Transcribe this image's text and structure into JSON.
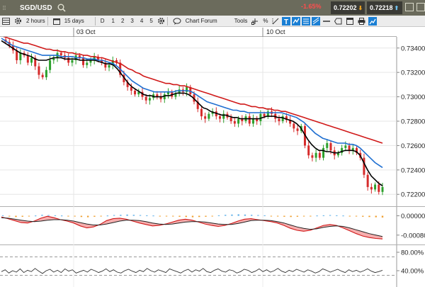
{
  "header": {
    "symbol": "SGD/USD",
    "change": "-1.65%",
    "bid": "0.72202",
    "ask": "0.72218"
  },
  "toolbar": {
    "interval": "2 hours",
    "range": "15 days",
    "candle_label": "D",
    "periods": [
      "1",
      "2",
      "3",
      "4",
      "5"
    ],
    "forum": "Chart Forum",
    "tools": "Tools",
    "percent": "%"
  },
  "dates": [
    "03 Oct",
    "10 Oct"
  ],
  "colors": {
    "up": "#2ca02c",
    "down": "#d62b2b",
    "ma_fast": "#000000",
    "ma_mid": "#1f6fd1",
    "ma_slow": "#d01818",
    "hist_pos": "#5aaee8",
    "hist_neg": "#f0a030",
    "macd_fill": "#f4a0a0"
  },
  "chart_data": [
    {
      "type": "candlestick",
      "title": "SGD/USD",
      "ylim": [
        0.7212,
        0.7348
      ],
      "y_ticks": [
        "0.73400",
        "0.73200",
        "0.73000",
        "0.72800",
        "0.72600",
        "0.72400",
        "0.72200"
      ],
      "x_labels": [
        "03 Oct",
        "10 Oct"
      ],
      "grid": true,
      "closes": [
        0.7345,
        0.7342,
        0.7338,
        0.733,
        0.7336,
        0.7334,
        0.7328,
        0.7332,
        0.7325,
        0.7318,
        0.7316,
        0.7322,
        0.733,
        0.7332,
        0.7336,
        0.7334,
        0.7332,
        0.7328,
        0.733,
        0.7334,
        0.7332,
        0.7326,
        0.7328,
        0.733,
        0.7333,
        0.733,
        0.7328,
        0.7324,
        0.7326,
        0.733,
        0.7328,
        0.7318,
        0.7312,
        0.7308,
        0.7305,
        0.7302,
        0.7304,
        0.73,
        0.7297,
        0.7299,
        0.7302,
        0.73,
        0.7298,
        0.7302,
        0.7304,
        0.73,
        0.7303,
        0.7306,
        0.7304,
        0.7308,
        0.7302,
        0.7296,
        0.729,
        0.7284,
        0.7282,
        0.7286,
        0.7288,
        0.7284,
        0.7282,
        0.7286,
        0.7283,
        0.728,
        0.7278,
        0.7282,
        0.728,
        0.7284,
        0.7278,
        0.7282,
        0.728,
        0.7286,
        0.7284,
        0.7288,
        0.7286,
        0.7282,
        0.728,
        0.7284,
        0.7281,
        0.7278,
        0.7274,
        0.7272,
        0.7276,
        0.726,
        0.7252,
        0.725,
        0.7254,
        0.725,
        0.7258,
        0.7262,
        0.7256,
        0.7252,
        0.7254,
        0.7258,
        0.726,
        0.7256,
        0.7258,
        0.7254,
        0.725,
        0.7236,
        0.7226,
        0.7224,
        0.7228,
        0.7222,
        0.7226
      ],
      "series": [
        {
          "name": "",
          "values": [
            0.7346,
            0.7344,
            0.7342,
            0.734,
            0.7338,
            0.7336,
            0.7335,
            0.7334,
            0.7333,
            0.7331,
            0.733,
            0.733,
            0.733,
            0.7331,
            0.7332,
            0.7332,
            0.7332,
            0.7331,
            0.7331,
            0.7331,
            0.7331,
            0.733,
            0.733,
            0.733,
            0.733,
            0.733,
            0.7329,
            0.7328,
            0.7327,
            0.7327,
            0.7326,
            0.7323,
            0.7319,
            0.7315,
            0.7311,
            0.7308,
            0.7306,
            0.7304,
            0.7302,
            0.7301,
            0.7301,
            0.73,
            0.73,
            0.73,
            0.7301,
            0.7301,
            0.7302,
            0.7303,
            0.7303,
            0.7303,
            0.7302,
            0.73,
            0.7297,
            0.7294,
            0.7291,
            0.729,
            0.7288,
            0.7287,
            0.7286,
            0.7285,
            0.7285,
            0.7284,
            0.7283,
            0.7283,
            0.7282,
            0.7282,
            0.7282,
            0.7282,
            0.7282,
            0.7282,
            0.7283,
            0.7284,
            0.7284,
            0.7284,
            0.7283,
            0.7283,
            0.7282,
            0.7281,
            0.728,
            0.7278,
            0.7275,
            0.727,
            0.7265,
            0.7261,
            0.7258,
            0.7256,
            0.7256,
            0.7255,
            0.7255,
            0.7254,
            0.7254,
            0.7255,
            0.7256,
            0.7256,
            0.7256,
            0.7255,
            0.7252,
            0.7246,
            0.724,
            0.7235,
            0.7232,
            0.7229,
            0.7227
          ]
        },
        {
          "name": "",
          "values": [
            0.7348,
            0.7346,
            0.7344,
            0.7342,
            0.7341,
            0.734,
            0.7339,
            0.7338,
            0.7337,
            0.7336,
            0.7335,
            0.7334,
            0.7334,
            0.7334,
            0.7334,
            0.7334,
            0.7333,
            0.7333,
            0.7333,
            0.7333,
            0.7332,
            0.7332,
            0.7332,
            0.7331,
            0.7331,
            0.7331,
            0.733,
            0.733,
            0.7329,
            0.7328,
            0.7327,
            0.7325,
            0.7322,
            0.7319,
            0.7316,
            0.7313,
            0.7311,
            0.7309,
            0.7307,
            0.7306,
            0.7305,
            0.7304,
            0.7304,
            0.7304,
            0.7304,
            0.7304,
            0.7304,
            0.7305,
            0.7305,
            0.7305,
            0.7305,
            0.7304,
            0.7302,
            0.73,
            0.7298,
            0.7296,
            0.7295,
            0.7294,
            0.7293,
            0.7292,
            0.7291,
            0.729,
            0.7289,
            0.7289,
            0.7288,
            0.7288,
            0.7287,
            0.7287,
            0.7287,
            0.7287,
            0.7287,
            0.7287,
            0.7287,
            0.7287,
            0.7287,
            0.7287,
            0.7286,
            0.7285,
            0.7284,
            0.7283,
            0.7281,
            0.7279,
            0.7276,
            0.7273,
            0.727,
            0.7268,
            0.7266,
            0.7265,
            0.7264,
            0.7263,
            0.7262,
            0.7262,
            0.7262,
            0.7261,
            0.7261,
            0.726,
            0.7258,
            0.7255,
            0.7252,
            0.7249,
            0.7246,
            0.7244,
            0.7242
          ]
        },
        {
          "name": "",
          "values": [
            0.735,
            0.7349,
            0.7348,
            0.7347,
            0.7346,
            0.7345,
            0.7344,
            0.7344,
            0.7343,
            0.7342,
            0.7341,
            0.734,
            0.7339,
            0.7339,
            0.7338,
            0.7338,
            0.7337,
            0.7337,
            0.7336,
            0.7336,
            0.7335,
            0.7335,
            0.7334,
            0.7334,
            0.7333,
            0.7333,
            0.7332,
            0.7332,
            0.7331,
            0.733,
            0.7329,
            0.7328,
            0.7327,
            0.7325,
            0.7323,
            0.7322,
            0.732,
            0.7319,
            0.7317,
            0.7316,
            0.7315,
            0.7314,
            0.7313,
            0.7312,
            0.7311,
            0.7311,
            0.731,
            0.731,
            0.7309,
            0.7309,
            0.7308,
            0.7307,
            0.7306,
            0.7305,
            0.7304,
            0.7303,
            0.7302,
            0.7301,
            0.73,
            0.7299,
            0.7298,
            0.7297,
            0.7296,
            0.7295,
            0.7294,
            0.7294,
            0.7293,
            0.7292,
            0.7292,
            0.7291,
            0.7291,
            0.729,
            0.729,
            0.7289,
            0.7289,
            0.7288,
            0.7288,
            0.7287,
            0.7286,
            0.7285,
            0.7284,
            0.7283,
            0.7282,
            0.7281,
            0.728,
            0.7279,
            0.7278,
            0.7277,
            0.7276,
            0.7275,
            0.7274,
            0.7273,
            0.7272,
            0.7271,
            0.727,
            0.7269,
            0.7268,
            0.7267,
            0.7266,
            0.7265,
            0.7264,
            0.7263,
            0.7262
          ]
        }
      ]
    },
    {
      "type": "bar",
      "title": "",
      "y_ticks": [
        "0.00000",
        "-0.00080"
      ],
      "ylim": [
        -0.0011,
        0.00025
      ],
      "histogram": [
        2e-05,
        -3e-05,
        -5e-05,
        -4e-05,
        -2e-05,
        1e-05,
        4e-05,
        3e-05,
        2e-05,
        1e-05,
        -1e-05,
        -3e-05,
        -5e-05,
        -6e-05,
        -4e-05,
        -2e-05,
        1e-05,
        3e-05,
        4e-05,
        5e-05,
        4e-05,
        3e-05,
        2e-05,
        1e-05,
        -1e-05,
        -2e-05,
        -3e-05,
        -4e-05,
        -5e-05,
        -6e-05,
        -5e-05,
        -4e-05,
        -2e-05,
        2e-05,
        4e-05,
        5e-05,
        6e-05,
        5e-05,
        4e-05,
        3e-05,
        2e-05,
        -1e-05,
        -3e-05,
        -4e-05,
        -5e-05,
        -4e-05,
        -3e-05,
        -2e-05,
        1e-05,
        2e-05,
        3e-05,
        2e-05,
        1e-05,
        -2e-05,
        -3e-05,
        -4e-05,
        -5e-05,
        -6e-05,
        -7e-05
      ],
      "macd": [
        -5e-05,
        -0.00012,
        -0.0002,
        -0.00028,
        -0.0003,
        -0.00022,
        -0.0001,
        -2e-05,
        -8e-05,
        -0.00016,
        -0.00022,
        -0.0003,
        -0.00042,
        -0.0005,
        -0.00046,
        -0.00036,
        -0.0002,
        -0.00012,
        -0.0001,
        -0.00014,
        -0.00022,
        -0.0003,
        -0.00036,
        -0.00042,
        -0.0004,
        -0.00034,
        -0.00026,
        -0.00018,
        -0.00014,
        -0.00018,
        -0.00026,
        -0.00034,
        -0.0004,
        -0.00044,
        -0.0004,
        -0.00032,
        -0.00022,
        -0.00014,
        -0.00012,
        -0.00016,
        -0.0002,
        -0.00024,
        -0.0003,
        -0.0004,
        -0.00052,
        -0.0006,
        -0.00064,
        -0.0006,
        -0.0005,
        -0.0004,
        -0.00036,
        -0.0004,
        -0.0005,
        -0.00062,
        -0.00074,
        -0.00084,
        -0.0009,
        -0.00094,
        -0.00096
      ],
      "signal": [
        -8e-05,
        -0.0001,
        -0.00014,
        -0.00018,
        -0.00022,
        -0.00024,
        -0.00022,
        -0.00018,
        -0.00016,
        -0.00016,
        -0.00018,
        -0.00022,
        -0.00028,
        -0.00034,
        -0.00038,
        -0.00038,
        -0.00034,
        -0.00028,
        -0.00022,
        -0.00018,
        -0.00018,
        -0.0002,
        -0.00024,
        -0.0003,
        -0.00034,
        -0.00036,
        -0.00034,
        -0.0003,
        -0.00026,
        -0.00024,
        -0.00024,
        -0.00026,
        -0.0003,
        -0.00034,
        -0.00036,
        -0.00036,
        -0.00032,
        -0.00026,
        -0.0002,
        -0.00018,
        -0.00018,
        -0.0002,
        -0.00024,
        -0.0003,
        -0.00038,
        -0.00046,
        -0.00052,
        -0.00056,
        -0.00054,
        -0.00048,
        -0.00044,
        -0.00042,
        -0.00044,
        -0.0005,
        -0.00058,
        -0.00066,
        -0.00074,
        -0.0008,
        -0.00086
      ]
    },
    {
      "type": "line",
      "title": "",
      "y_ticks": [
        "80.00%",
        "40.00%"
      ],
      "ylim": [
        0,
        100
      ],
      "reference_lines": [
        70,
        30
      ],
      "values": [
        38,
        42,
        35,
        40,
        37,
        44,
        36,
        41,
        38,
        45,
        39,
        34,
        40,
        43,
        37,
        41,
        36,
        44,
        39,
        42,
        35,
        38,
        41,
        37,
        43,
        40,
        36,
        39,
        44,
        38,
        42,
        37,
        35,
        40,
        43,
        39,
        36,
        41,
        38,
        45,
        40,
        37,
        42,
        39,
        36,
        44,
        41,
        38,
        35,
        40,
        43,
        37,
        42,
        39,
        45,
        38,
        36,
        41,
        44,
        39,
        37,
        42,
        40,
        35,
        38,
        43,
        41,
        36,
        39,
        44,
        38,
        42,
        37,
        40,
        45,
        39,
        36,
        41,
        38,
        43,
        40,
        37,
        42,
        39,
        35,
        38,
        44,
        41,
        37,
        40,
        43,
        39,
        36,
        42,
        38,
        41,
        37,
        40,
        44,
        39,
        36,
        38,
        41
      ]
    }
  ]
}
